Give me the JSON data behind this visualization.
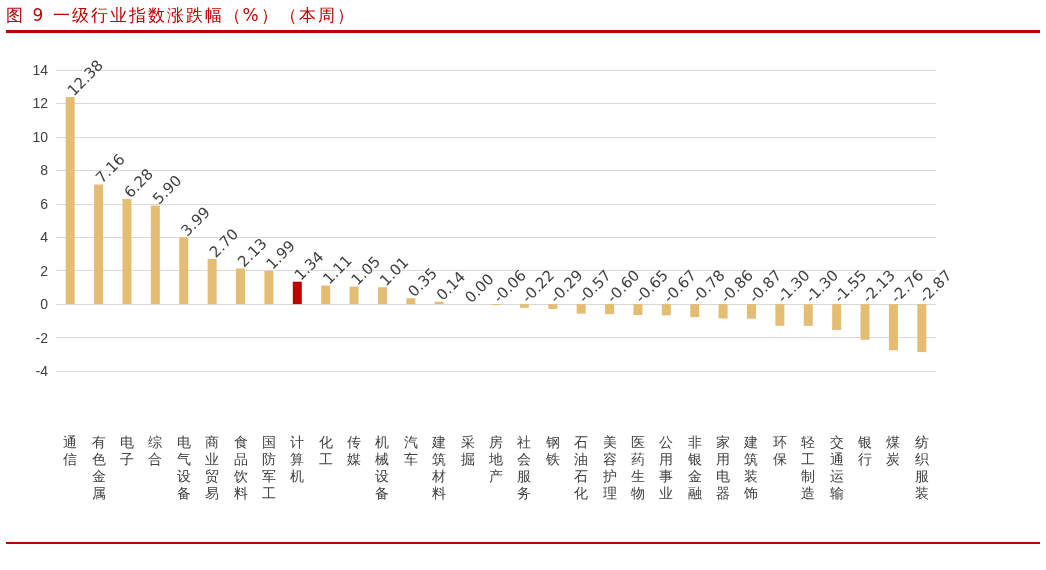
{
  "chart_data": {
    "type": "bar",
    "title": "图 9 一级行业指数涨跌幅（%）（本周）",
    "categories": [
      "通信",
      "有色金属",
      "电子",
      "综合",
      "电气设备",
      "商业贸易",
      "食品饮料",
      "国防军工",
      "计算机",
      "化工",
      "传媒",
      "机械设备",
      "汽车",
      "建筑材料",
      "采掘",
      "房地产",
      "社会服务",
      "钢铁",
      "石油石化",
      "美容护理",
      "医药生物",
      "公用事业",
      "非银金融",
      "家用电器",
      "建筑装饰",
      "环保",
      "轻工制造",
      "交通运输",
      "银行",
      "煤炭",
      "纺织服装"
    ],
    "values": [
      12.38,
      7.16,
      6.28,
      5.9,
      3.99,
      2.7,
      2.13,
      1.99,
      1.34,
      1.11,
      1.05,
      1.01,
      0.35,
      0.14,
      0.0,
      -0.06,
      -0.22,
      -0.29,
      -0.57,
      -0.6,
      -0.65,
      -0.67,
      -0.78,
      -0.86,
      -0.87,
      -1.3,
      -1.3,
      -1.55,
      -2.13,
      -2.76,
      -2.87
    ],
    "value_labels": [
      "12.38",
      "7.16",
      "6.28",
      "5.90",
      "3.99",
      "2.70",
      "2.13",
      "1.99",
      "1.34",
      "1.11",
      "1.05",
      "1.01",
      "0.35",
      "0.14",
      "0.00",
      "-0.06",
      "-0.22",
      "-0.29",
      "-0.57",
      "-0.60",
      "-0.65",
      "-0.67",
      "-0.78",
      "-0.86",
      "-0.87",
      "-1.30",
      "-1.30",
      "-1.55",
      "-2.13",
      "-2.76",
      "-2.87"
    ],
    "colors": [
      "#e5bd72",
      "#e5bd72",
      "#e5bd72",
      "#e5bd72",
      "#e5bd72",
      "#e5bd72",
      "#e5bd72",
      "#e5bd72",
      "#c00000",
      "#e5bd72",
      "#e5bd72",
      "#e5bd72",
      "#e5bd72",
      "#e5bd72",
      "#e5bd72",
      "#e5bd72",
      "#e5bd72",
      "#e5bd72",
      "#e5bd72",
      "#e5bd72",
      "#e5bd72",
      "#e5bd72",
      "#e5bd72",
      "#e5bd72",
      "#e5bd72",
      "#e5bd72",
      "#e5bd72",
      "#e5bd72",
      "#e5bd72",
      "#e5bd72",
      "#e5bd72"
    ],
    "ylim": [
      -4,
      14
    ],
    "yticks": [
      -4,
      -2,
      0,
      2,
      4,
      6,
      8,
      10,
      12,
      14
    ],
    "grid": "y"
  }
}
